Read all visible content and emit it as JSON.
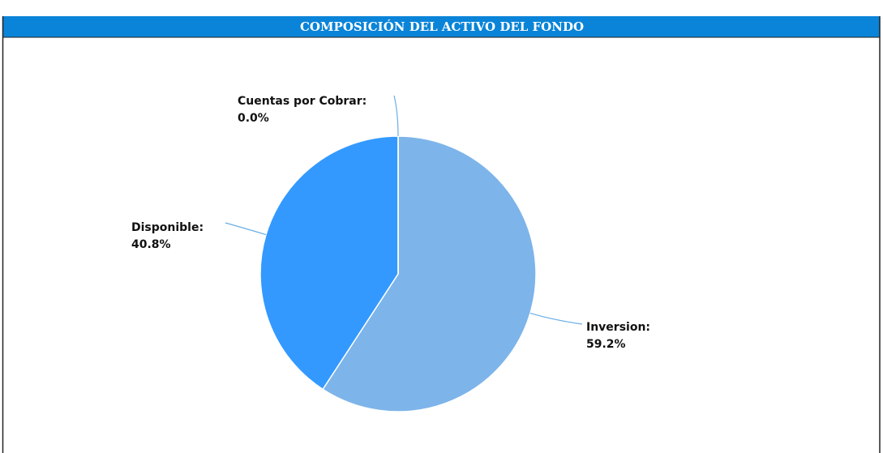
{
  "chart_data": {
    "type": "pie",
    "title": "COMPOSICIÓN DEL ACTIVO DEL FONDO",
    "categories": [
      "Inversion:",
      "Disponible:",
      "Cuentas por Cobrar:"
    ],
    "values": [
      59.2,
      40.8,
      0.0
    ],
    "value_labels": [
      "59.2%",
      "40.8%",
      "0.0%"
    ],
    "colors": [
      "#7db4ea",
      "#3399ff",
      "#2a7fd4"
    ]
  }
}
